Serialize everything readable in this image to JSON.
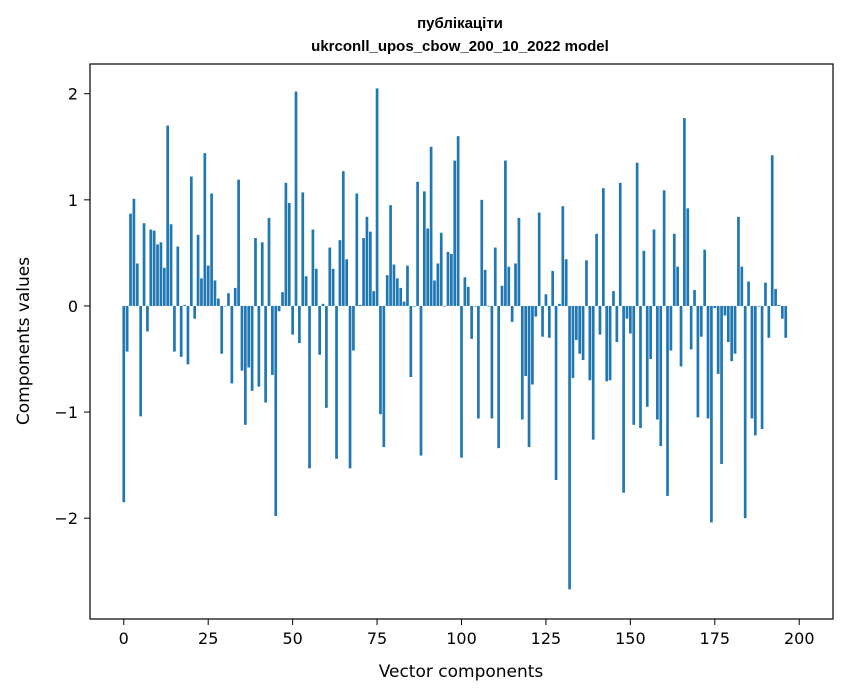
{
  "chart_data": {
    "type": "bar",
    "title_line1": "публікаціти",
    "title_line2": "ukrconll_upos_cbow_200_10_2022 model",
    "xlabel": "Vector components",
    "ylabel": "Components values",
    "xlim": [
      -10,
      210
    ],
    "ylim": [
      -2.95,
      2.28
    ],
    "xticks": [
      0,
      25,
      50,
      75,
      100,
      125,
      150,
      175,
      200
    ],
    "xtick_labels": [
      "0",
      "25",
      "50",
      "75",
      "100",
      "125",
      "150",
      "175",
      "200"
    ],
    "yticks": [
      -2,
      -1,
      0,
      1,
      2
    ],
    "ytick_labels": [
      "−2",
      "−1",
      "0",
      "1",
      "2"
    ],
    "grid": false,
    "bar_color": "#1f77b4",
    "values": [
      -1.85,
      -0.43,
      0.87,
      1.01,
      0.4,
      -1.04,
      0.78,
      -0.24,
      0.72,
      0.71,
      0.58,
      0.6,
      0.36,
      1.7,
      0.77,
      -0.43,
      0.56,
      -0.48,
      0.01,
      -0.55,
      1.22,
      -0.12,
      0.67,
      0.26,
      1.44,
      0.38,
      1.06,
      0.24,
      0.07,
      -0.45,
      0.0,
      0.12,
      -0.73,
      0.17,
      1.19,
      -0.61,
      -1.12,
      -0.58,
      -0.8,
      0.64,
      -0.76,
      0.6,
      -0.91,
      0.83,
      -0.65,
      -1.98,
      -0.05,
      0.13,
      1.16,
      0.97,
      -0.27,
      2.02,
      -0.35,
      1.07,
      0.28,
      -1.53,
      0.72,
      0.35,
      -0.46,
      0.02,
      -0.96,
      0.55,
      0.35,
      -1.44,
      0.62,
      1.27,
      0.44,
      -1.53,
      -0.42,
      1.06,
      0.01,
      0.64,
      0.84,
      0.7,
      0.14,
      2.05,
      -1.02,
      -1.33,
      0.29,
      0.95,
      0.39,
      0.26,
      0.17,
      0.04,
      0.38,
      -0.67,
      0.0,
      1.17,
      -1.41,
      1.08,
      0.73,
      1.5,
      0.24,
      0.4,
      0.69,
      0.0,
      0.51,
      0.49,
      1.37,
      1.6,
      -1.43,
      0.27,
      0.18,
      -0.31,
      0.0,
      -1.06,
      1.0,
      0.34,
      0.0,
      -1.06,
      0.55,
      -1.34,
      0.19,
      1.37,
      0.37,
      -0.15,
      0.4,
      0.83,
      -1.07,
      -0.66,
      -1.33,
      -0.74,
      -0.1,
      0.88,
      -0.29,
      0.11,
      -0.3,
      0.33,
      -1.64,
      0.02,
      0.94,
      0.44,
      -2.67,
      -0.68,
      -0.32,
      -0.45,
      -0.51,
      0.43,
      -0.7,
      -1.26,
      0.68,
      -0.27,
      1.11,
      -0.71,
      -0.7,
      0.14,
      -0.34,
      1.16,
      -1.76,
      -0.12,
      -0.26,
      -1.12,
      1.35,
      -1.15,
      0.52,
      -0.95,
      -0.5,
      0.72,
      -1.07,
      -1.32,
      1.09,
      -1.79,
      -0.42,
      0.68,
      0.37,
      -0.57,
      1.77,
      0.92,
      -0.41,
      0.15,
      -1.05,
      -0.29,
      0.53,
      -1.06,
      -2.04,
      -0.02,
      -0.64,
      -1.49,
      -0.09,
      -0.34,
      -0.52,
      -0.45,
      0.84,
      0.37,
      -2.0,
      0.23,
      -1.06,
      -1.22,
      0.0,
      -1.16,
      0.22,
      -0.3,
      1.42,
      0.16,
      0.01,
      -0.12,
      -0.3
    ]
  }
}
